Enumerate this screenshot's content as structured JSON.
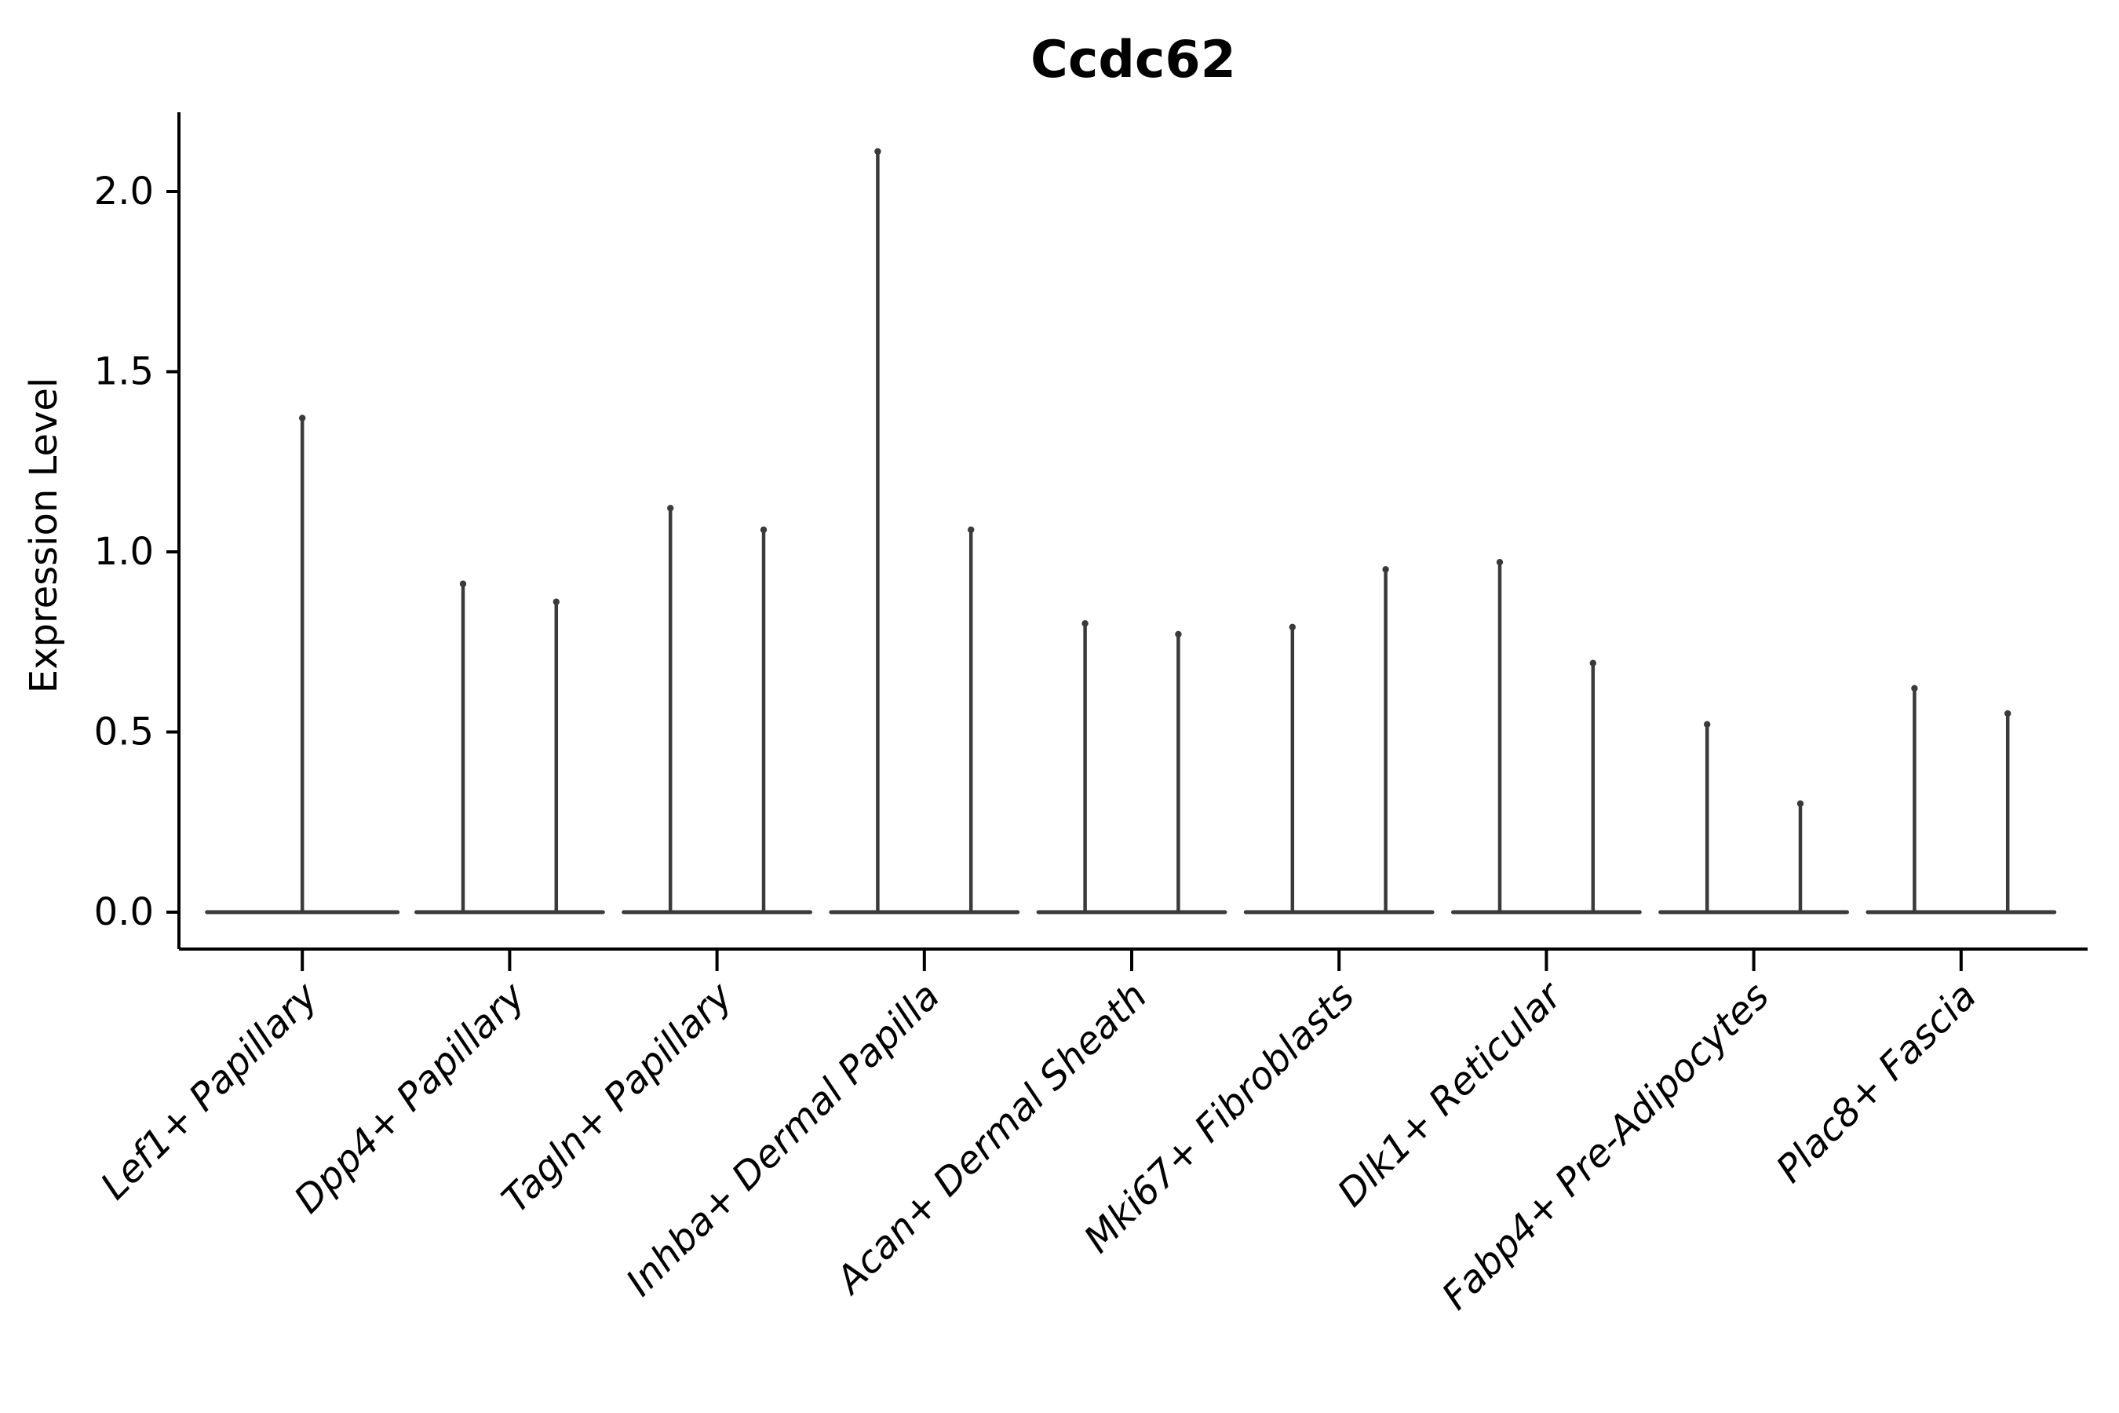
{
  "chart_data": {
    "type": "violin",
    "title": "Ccdc62",
    "ylabel": "Expression Level",
    "xlabel": "",
    "yticks": [
      "0.0",
      "0.5",
      "1.0",
      "1.5",
      "2.0"
    ],
    "ytick_values": [
      0.0,
      0.5,
      1.0,
      1.5,
      2.0
    ],
    "ylim": [
      -0.1,
      2.22
    ],
    "grid": false,
    "legend": "none",
    "categories": [
      "Lef1+ Papillary",
      "Dpp4+ Papillary",
      "Tagln+ Papillary",
      "Inhba+ Dermal Papilla",
      "Acan+ Dermal Sheath",
      "Mki67+ Fibroblasts",
      "Dlk1+ Reticular",
      "Fabp4+ Pre-Adipocytes",
      "Plac8+ Fascia"
    ],
    "violins_per_category": [
      1,
      2,
      2,
      2,
      2,
      2,
      2,
      2,
      2
    ],
    "violin_max_expression": [
      [
        1.38
      ],
      [
        0.92,
        0.87
      ],
      [
        1.13,
        1.07
      ],
      [
        2.12,
        1.07
      ],
      [
        0.81,
        0.78
      ],
      [
        0.8,
        0.96
      ],
      [
        0.98,
        0.7
      ],
      [
        0.53,
        0.31
      ],
      [
        0.63,
        0.56
      ]
    ],
    "violin_baseline_value": 0.0,
    "shape_note": "violins collapsed flat at 0 with a thin spike rising to the max expression",
    "colors": {
      "violin_stroke": "#3a3a3a",
      "axis": "#000000",
      "text": "#000000",
      "background": "#ffffff"
    },
    "x_tick_label_style": "italic, rotated 45deg, right-aligned",
    "title_style": "bold"
  }
}
